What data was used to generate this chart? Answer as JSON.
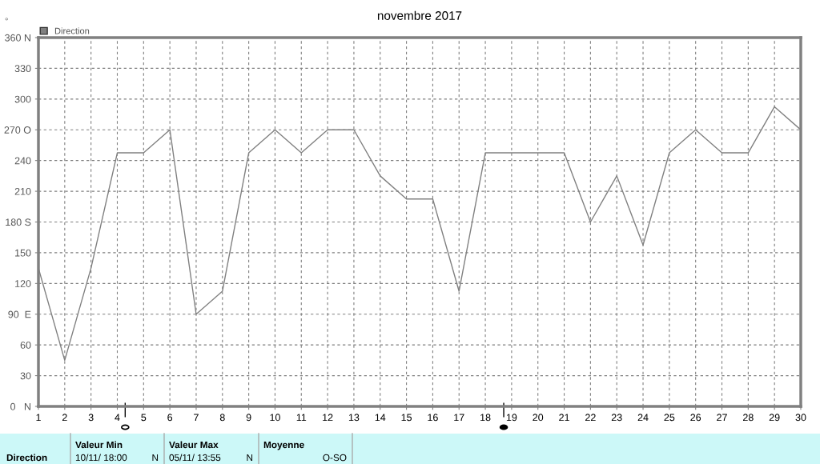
{
  "chart_data": {
    "type": "line",
    "title": "novembre 2017",
    "ylabel": "°",
    "x": [
      1,
      2,
      3,
      4,
      5,
      6,
      7,
      8,
      9,
      10,
      11,
      12,
      13,
      14,
      15,
      16,
      17,
      18,
      19,
      20,
      21,
      22,
      23,
      24,
      25,
      26,
      27,
      28,
      29,
      30
    ],
    "series": [
      {
        "name": "Direction",
        "color": "#808080",
        "values": [
          135,
          45,
          135,
          247.5,
          247.5,
          270,
          90,
          112.5,
          247.5,
          270,
          247.5,
          270,
          270,
          225,
          202.5,
          202.5,
          112.5,
          247.5,
          247.5,
          247.5,
          247.5,
          180,
          225,
          157.5,
          247.5,
          270,
          247.5,
          247.5,
          292.5,
          270
        ]
      }
    ],
    "xlim": [
      1,
      30
    ],
    "xticks": [
      1,
      2,
      3,
      4,
      5,
      6,
      7,
      8,
      9,
      10,
      11,
      12,
      13,
      14,
      15,
      16,
      17,
      18,
      19,
      20,
      21,
      22,
      23,
      24,
      25,
      26,
      27,
      28,
      29,
      30
    ],
    "ylim": [
      0,
      360
    ],
    "yticks": [
      {
        "value": 0,
        "label": "0   N"
      },
      30,
      60,
      {
        "value": 90,
        "label": "90  E"
      },
      120,
      150,
      {
        "value": 180,
        "label": "180 S"
      },
      210,
      240,
      {
        "value": 270,
        "label": "270 O"
      },
      300,
      330,
      {
        "value": 360,
        "label": "360 N"
      }
    ],
    "grid": true,
    "legend": "top left",
    "marker": "none",
    "line_style": "solid",
    "annotations": [
      "Direction",
      "Valeur Min",
      "10/11/ 18:00",
      "N",
      "Valeur Max",
      "05/11/ 13:55",
      "N",
      "Moyenne",
      "O-SO"
    ]
  }
}
